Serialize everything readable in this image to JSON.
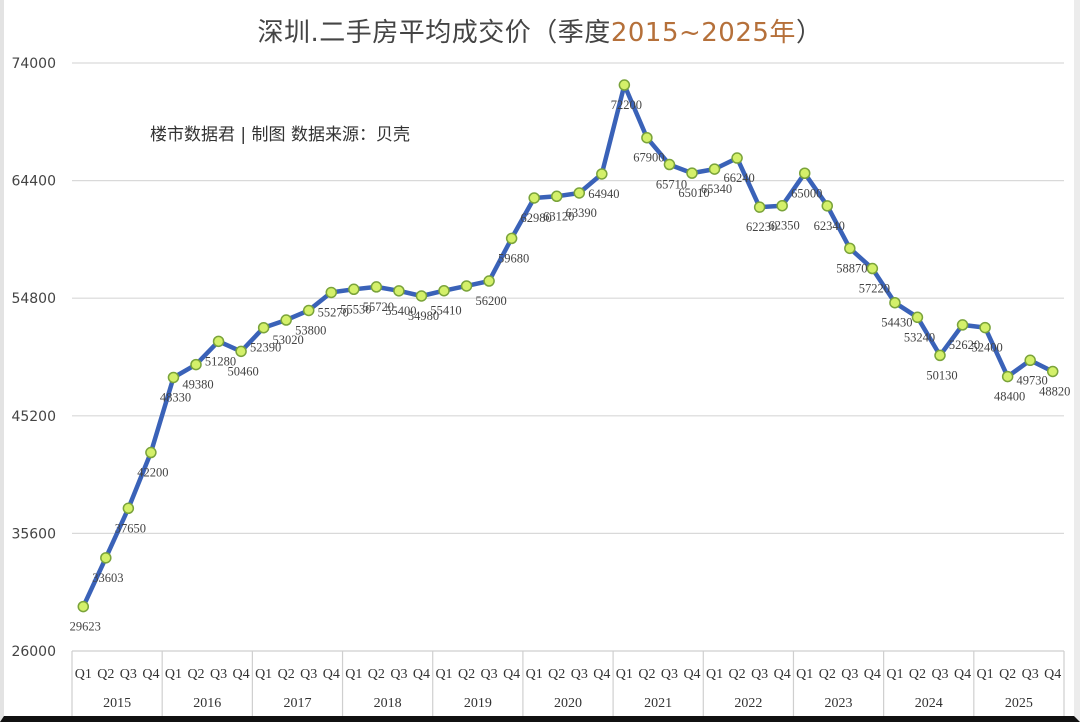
{
  "title": {
    "main": "深圳.二手房平均成交价（季度",
    "accent": "2015~2025年",
    "close": "）"
  },
  "credit": "楼市数据君 | 制图   数据来源：贝壳",
  "colors": {
    "line": "#3a62b8",
    "marker_fill": "#d4f06a",
    "marker_stroke": "#7aa33a",
    "grid": "#d9d9d9",
    "title_accent": "#b5703a"
  },
  "chart_data": {
    "type": "line",
    "title": "深圳.二手房平均成交价（季度2015~2025年）",
    "xlabel": "",
    "ylabel": "",
    "ylim": [
      26000,
      74000
    ],
    "yticks": [
      26000,
      35600,
      45200,
      54800,
      64400,
      74000
    ],
    "grid": true,
    "legend": "none",
    "years": [
      "2015",
      "2016",
      "2017",
      "2018",
      "2019",
      "2020",
      "2021",
      "2022",
      "2023",
      "2024",
      "2025"
    ],
    "quarters": [
      "Q1",
      "Q2",
      "Q3",
      "Q4"
    ],
    "categories": [
      "2015 Q1",
      "2015 Q2",
      "2015 Q3",
      "2015 Q4",
      "2016 Q1",
      "2016 Q2",
      "2016 Q3",
      "2016 Q4",
      "2017 Q1",
      "2017 Q2",
      "2017 Q3",
      "2017 Q4",
      "2018 Q1",
      "2018 Q2",
      "2018 Q3",
      "2018 Q4",
      "2019 Q1",
      "2019 Q2",
      "2019 Q3",
      "2019 Q4",
      "2020 Q1",
      "2020 Q2",
      "2020 Q3",
      "2020 Q4",
      "2021 Q1",
      "2021 Q2",
      "2021 Q3",
      "2021 Q4",
      "2022 Q1",
      "2022 Q2",
      "2022 Q3",
      "2022 Q4",
      "2023 Q1",
      "2023 Q2",
      "2023 Q3",
      "2023 Q4",
      "2024 Q1",
      "2024 Q2",
      "2024 Q3",
      "2024 Q4",
      "2025 Q1",
      "2025 Q2",
      "2025 Q3",
      "2025 Q4"
    ],
    "values": [
      29623,
      33603,
      37650,
      42200,
      48330,
      49380,
      51280,
      50460,
      52390,
      53020,
      53800,
      55270,
      55530,
      55720,
      55400,
      54980,
      55410,
      55800,
      56200,
      59680,
      62980,
      63120,
      63390,
      64940,
      72200,
      67900,
      65710,
      65010,
      65340,
      66240,
      62230,
      62350,
      65000,
      62340,
      58870,
      57220,
      54430,
      53240,
      50130,
      52620,
      52400,
      48400,
      49730,
      48820
    ],
    "labels_shown": [
      "29623",
      "33603",
      "37650",
      "42200",
      "48330",
      "49380",
      "51280",
      "50460",
      "52390",
      "53020",
      "53800",
      "55270",
      "55530",
      "55720",
      "55400",
      "54980",
      "55410",
      "",
      "56200",
      "59680",
      "62980",
      "63120",
      "63390",
      "64940",
      "72200",
      "67900",
      "65710",
      "65010",
      "65340",
      "66240",
      "62230",
      "62350",
      "65000",
      "62340",
      "58870",
      "57220",
      "54430",
      "53240",
      "50130",
      "52620",
      "52400",
      "48400",
      "49730",
      "48820"
    ]
  }
}
